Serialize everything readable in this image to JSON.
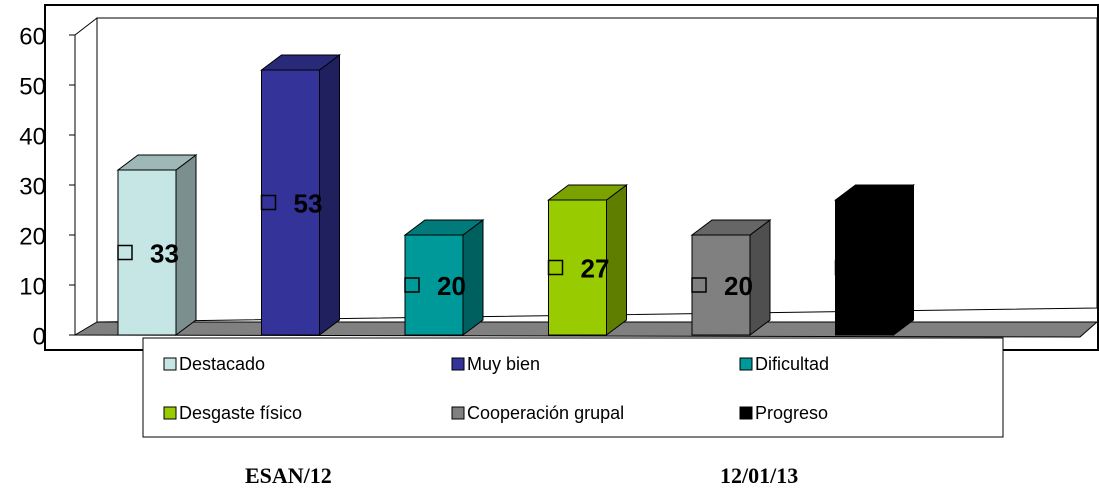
{
  "chart_data": {
    "type": "bar",
    "series": [
      {
        "name": "Destacado",
        "color": "#c6e6e6",
        "values": [
          33
        ]
      },
      {
        "name": "Muy bien",
        "color": "#333399",
        "values": [
          53
        ]
      },
      {
        "name": "Dificultad",
        "color": "#009999",
        "values": [
          20
        ]
      },
      {
        "name": "Desgaste físico",
        "color": "#99cc00",
        "values": [
          27
        ]
      },
      {
        "name": "Cooperación grupal",
        "color": "#808080",
        "values": [
          20
        ]
      },
      {
        "name": "Progreso",
        "color": "#000000",
        "values": [
          27
        ]
      }
    ],
    "ylim": [
      0,
      60
    ],
    "yticks": [
      0,
      10,
      20,
      30,
      40,
      50,
      60
    ],
    "legend": "bottom"
  },
  "footer": {
    "left": "ESAN/12",
    "right": "12/01/13"
  }
}
